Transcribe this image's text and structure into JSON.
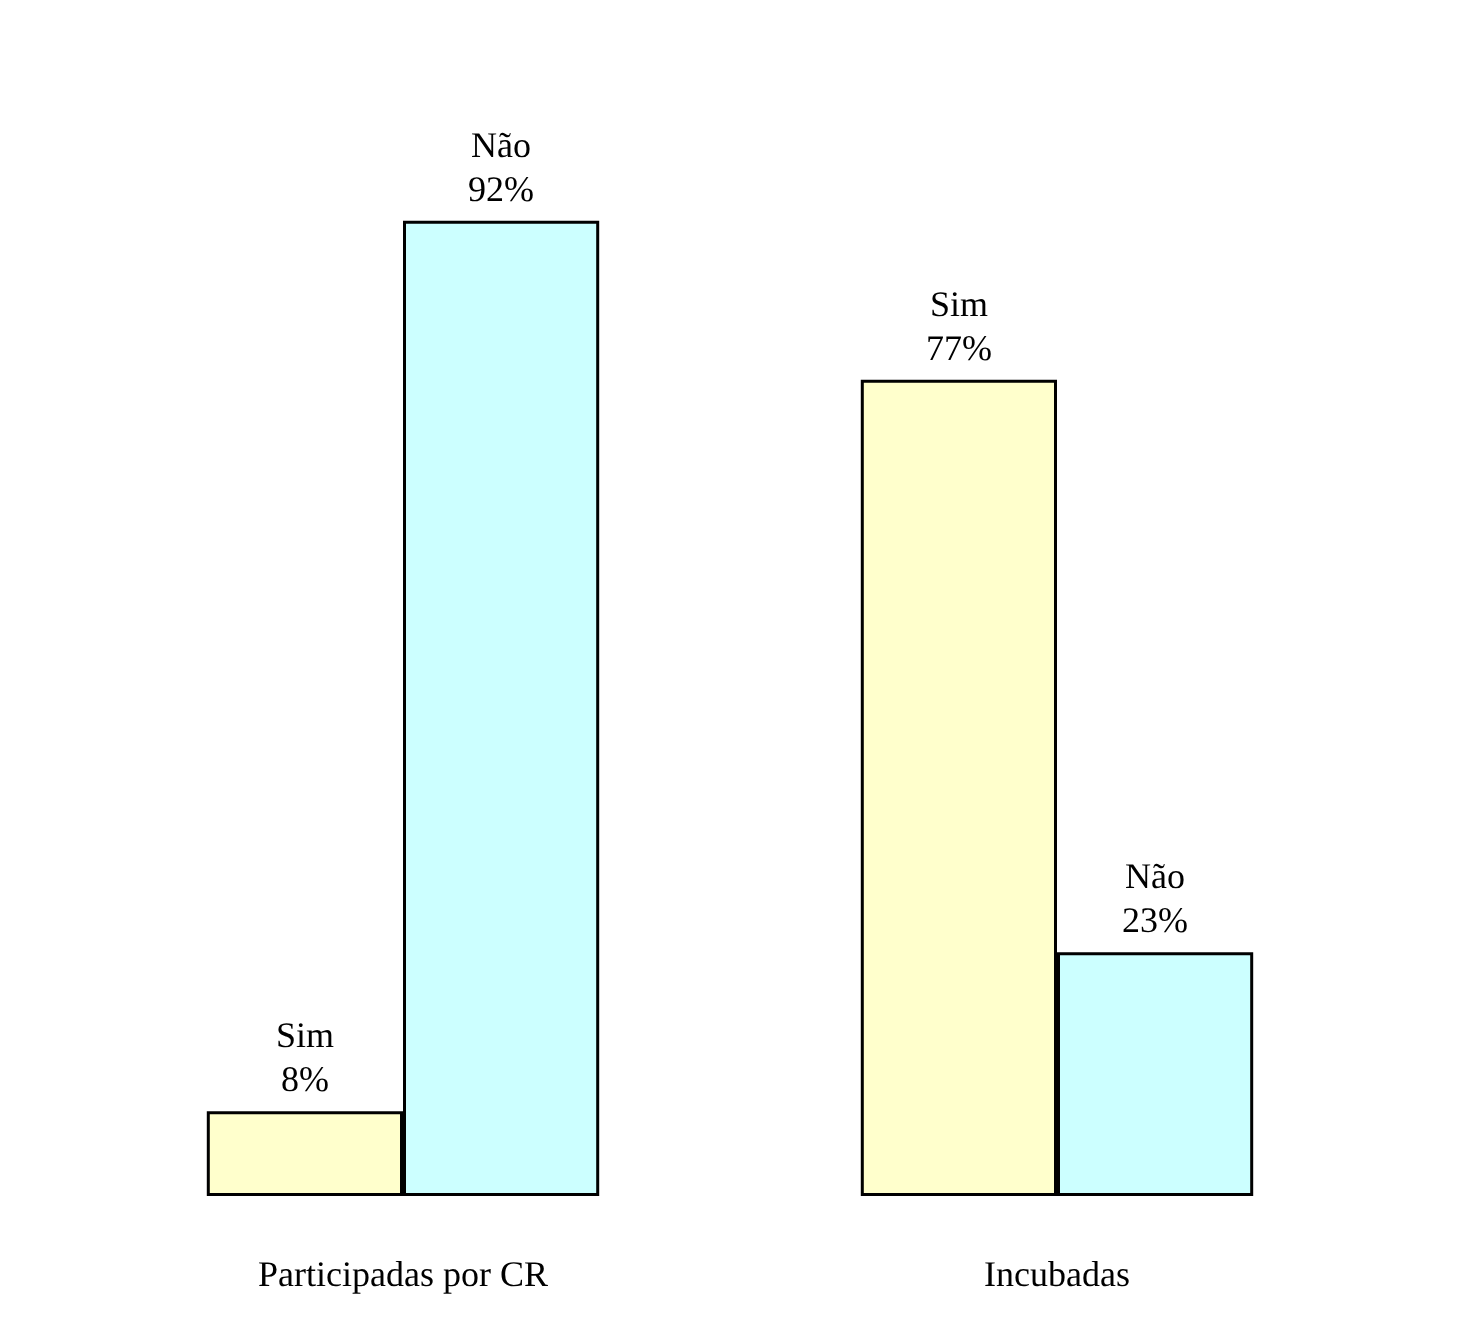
{
  "chart_data": {
    "type": "bar",
    "categories": [
      "Participadas por CR",
      "Incubadas"
    ],
    "series": [
      {
        "name": "Sim",
        "color": "#ffffcc",
        "values": [
          8,
          77
        ],
        "value_labels": [
          "8%",
          "77%"
        ]
      },
      {
        "name": "Não",
        "color": "#ccffff",
        "values": [
          92,
          23
        ],
        "value_labels": [
          "92%",
          "23%"
        ]
      }
    ],
    "legend": false
  }
}
